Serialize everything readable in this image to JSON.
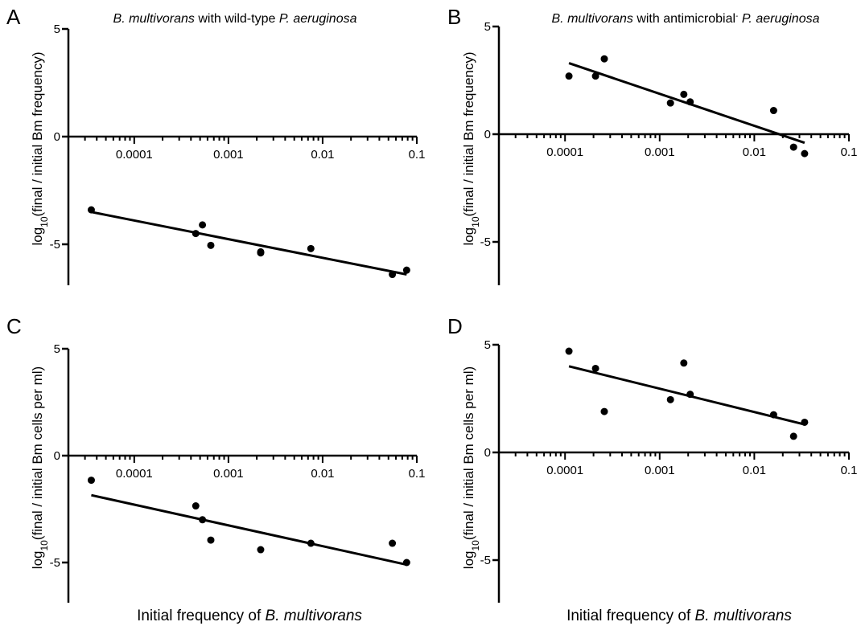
{
  "figure": {
    "xlabel_left": "Initial frequency of ",
    "xlabel_left_italic": "B. multivorans",
    "xlabel_right": "Initial frequency of ",
    "xlabel_right_italic": "B. multivorans"
  },
  "chart_data": [
    {
      "type": "scatter",
      "panel": "A",
      "title_parts": [
        {
          "text": "B. multivorans",
          "italic": true
        },
        {
          "text": " with wild-type ",
          "italic": false
        },
        {
          "text": "P. aeruginosa",
          "italic": true
        }
      ],
      "ylabel_main": "log",
      "ylabel_sub": "10",
      "ylabel_rest": "(final / initial Bm frequency)",
      "xscale": "log",
      "xlim": [
        2e-05,
        0.1
      ],
      "ylim": [
        -7,
        5
      ],
      "xticks": [
        {
          "value": 0.0001,
          "label": "0.0001"
        },
        {
          "value": 0.001,
          "label": "0.001"
        },
        {
          "value": 0.01,
          "label": "0.01"
        },
        {
          "value": 0.1,
          "label": "0.1"
        }
      ],
      "yticks": [
        {
          "value": 5,
          "label": "5"
        },
        {
          "value": 0,
          "label": "0"
        },
        {
          "value": -5,
          "label": "-5"
        }
      ],
      "points": [
        {
          "x": 3.5e-05,
          "y": -3.4
        },
        {
          "x": 0.00045,
          "y": -4.5
        },
        {
          "x": 0.00053,
          "y": -4.1
        },
        {
          "x": 0.00065,
          "y": -5.05
        },
        {
          "x": 0.0022,
          "y": -5.35
        },
        {
          "x": 0.0022,
          "y": -5.4
        },
        {
          "x": 0.0075,
          "y": -5.2
        },
        {
          "x": 0.055,
          "y": -6.4
        },
        {
          "x": 0.078,
          "y": -6.2
        }
      ],
      "fit": [
        {
          "x": 3.5e-05,
          "y": -3.5
        },
        {
          "x": 0.078,
          "y": -6.4
        }
      ]
    },
    {
      "type": "scatter",
      "panel": "B",
      "title_parts": [
        {
          "text": "B. multivorans",
          "italic": true
        },
        {
          "text": " with antimicrobial",
          "italic": false
        },
        {
          "text": "-",
          "italic": false,
          "sup": true
        },
        {
          "text": " P. aeruginosa",
          "italic": true
        }
      ],
      "ylabel_main": "log",
      "ylabel_sub": "10",
      "ylabel_rest": "(final / initial Bm frequency)",
      "xscale": "log",
      "xlim": [
        2e-05,
        0.1
      ],
      "ylim": [
        -7,
        5
      ],
      "xticks": [
        {
          "value": 0.0001,
          "label": "0.0001"
        },
        {
          "value": 0.001,
          "label": "0.001"
        },
        {
          "value": 0.01,
          "label": "0.01"
        },
        {
          "value": 0.1,
          "label": "0.1"
        }
      ],
      "yticks": [
        {
          "value": 5,
          "label": "5"
        },
        {
          "value": 0,
          "label": "0"
        },
        {
          "value": -5,
          "label": "-5"
        }
      ],
      "points": [
        {
          "x": 0.00011,
          "y": 2.7
        },
        {
          "x": 0.00021,
          "y": 2.7
        },
        {
          "x": 0.00026,
          "y": 3.5
        },
        {
          "x": 0.0013,
          "y": 1.45
        },
        {
          "x": 0.0018,
          "y": 1.85
        },
        {
          "x": 0.0021,
          "y": 1.5
        },
        {
          "x": 0.016,
          "y": 1.1
        },
        {
          "x": 0.026,
          "y": -0.6
        },
        {
          "x": 0.034,
          "y": -0.9
        }
      ],
      "fit": [
        {
          "x": 0.00011,
          "y": 3.3
        },
        {
          "x": 0.034,
          "y": -0.4
        }
      ]
    },
    {
      "type": "scatter",
      "panel": "C",
      "title_parts": [],
      "ylabel_main": "log",
      "ylabel_sub": "10",
      "ylabel_rest": "(final / initial Bm cells per ml)",
      "xscale": "log",
      "xlim": [
        2e-05,
        0.1
      ],
      "ylim": [
        -7,
        5
      ],
      "xticks": [
        {
          "value": 0.0001,
          "label": "0.0001"
        },
        {
          "value": 0.001,
          "label": "0.001"
        },
        {
          "value": 0.01,
          "label": "0.01"
        },
        {
          "value": 0.1,
          "label": "0.1"
        }
      ],
      "yticks": [
        {
          "value": 5,
          "label": "5"
        },
        {
          "value": 0,
          "label": "0"
        },
        {
          "value": -5,
          "label": "-5"
        }
      ],
      "points": [
        {
          "x": 3.5e-05,
          "y": -1.15
        },
        {
          "x": 0.00045,
          "y": -2.35
        },
        {
          "x": 0.00053,
          "y": -3.0
        },
        {
          "x": 0.00065,
          "y": -3.95
        },
        {
          "x": 0.0022,
          "y": -4.4
        },
        {
          "x": 0.0075,
          "y": -4.1
        },
        {
          "x": 0.055,
          "y": -4.1
        },
        {
          "x": 0.078,
          "y": -5.0
        }
      ],
      "fit": [
        {
          "x": 3.5e-05,
          "y": -1.85
        },
        {
          "x": 0.078,
          "y": -5.1
        }
      ]
    },
    {
      "type": "scatter",
      "panel": "D",
      "title_parts": [],
      "ylabel_main": "log",
      "ylabel_sub": "10",
      "ylabel_rest": "(final / initial Bm cells per ml)",
      "xscale": "log",
      "xlim": [
        2e-05,
        0.1
      ],
      "ylim": [
        -7,
        5
      ],
      "xticks": [
        {
          "value": 0.0001,
          "label": "0.0001"
        },
        {
          "value": 0.001,
          "label": "0.001"
        },
        {
          "value": 0.01,
          "label": "0.01"
        },
        {
          "value": 0.1,
          "label": "0.1"
        }
      ],
      "yticks": [
        {
          "value": 5,
          "label": "5"
        },
        {
          "value": 0,
          "label": "0"
        },
        {
          "value": -5,
          "label": "-5"
        }
      ],
      "points": [
        {
          "x": 0.00011,
          "y": 4.7
        },
        {
          "x": 0.00021,
          "y": 3.9
        },
        {
          "x": 0.00026,
          "y": 1.9
        },
        {
          "x": 0.0013,
          "y": 2.45
        },
        {
          "x": 0.0018,
          "y": 4.15
        },
        {
          "x": 0.0021,
          "y": 2.7
        },
        {
          "x": 0.016,
          "y": 1.75
        },
        {
          "x": 0.026,
          "y": 0.75
        },
        {
          "x": 0.034,
          "y": 1.4
        }
      ],
      "fit": [
        {
          "x": 0.00011,
          "y": 4.0
        },
        {
          "x": 0.034,
          "y": 1.3
        }
      ]
    }
  ]
}
